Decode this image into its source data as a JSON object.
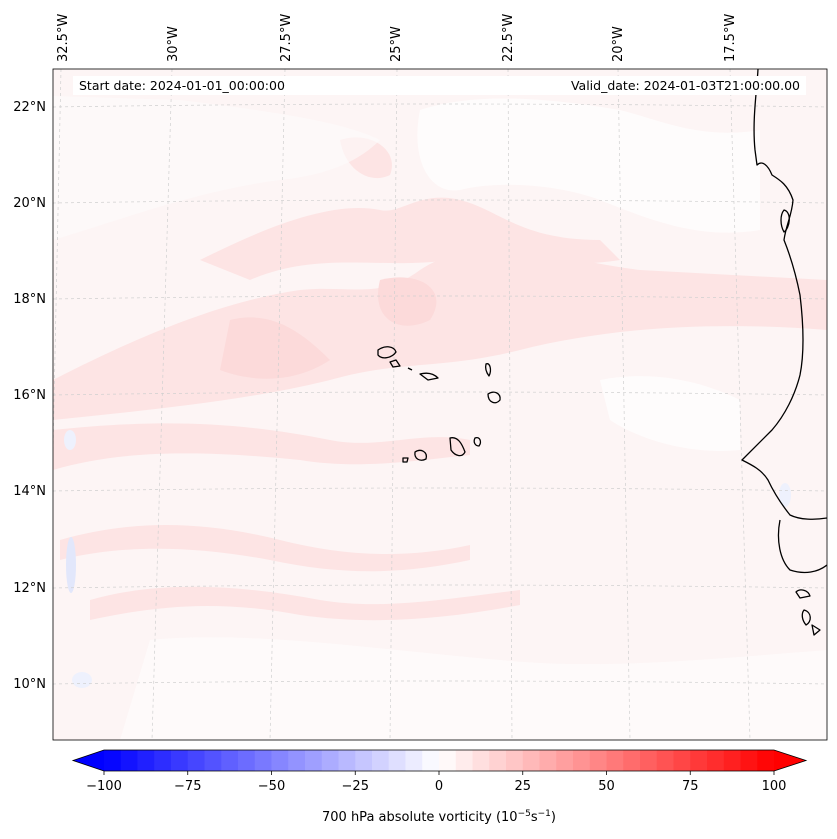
{
  "header": {
    "start_date": "Start date: 2024-01-01_00:00:00",
    "valid_date": "Valid_date: 2024-01-03T21:00:00.00"
  },
  "longitude_labels": [
    "32.5°W",
    "30°W",
    "27.5°W",
    "25°W",
    "22.5°W",
    "20°W",
    "17.5°W"
  ],
  "latitude_labels": [
    "22°N",
    "20°N",
    "18°N",
    "16°N",
    "14°N",
    "12°N",
    "10°N"
  ],
  "colorbar": {
    "title_prefix": "700 hPa absolute vorticity (10",
    "title_exp1": "−5",
    "title_mid": "s",
    "title_exp2": "−1",
    "title_suffix": ")",
    "range": [
      -100,
      100
    ],
    "step": 5,
    "ticks": [
      "−100",
      "−75",
      "−50",
      "−25",
      "0",
      "25",
      "50",
      "75",
      "100"
    ],
    "low_color": "#0000ff",
    "zero_color": "#ffffff",
    "high_color": "#ff0000"
  },
  "colors": {
    "field_background": "#fdf5f5",
    "light_pink": "#fde4e4",
    "pink": "#fcdada",
    "near_white": "#fefcfc",
    "light_blue": "#eef1fd",
    "coastline": "#000000",
    "gridline": "#cfcfcf"
  }
}
